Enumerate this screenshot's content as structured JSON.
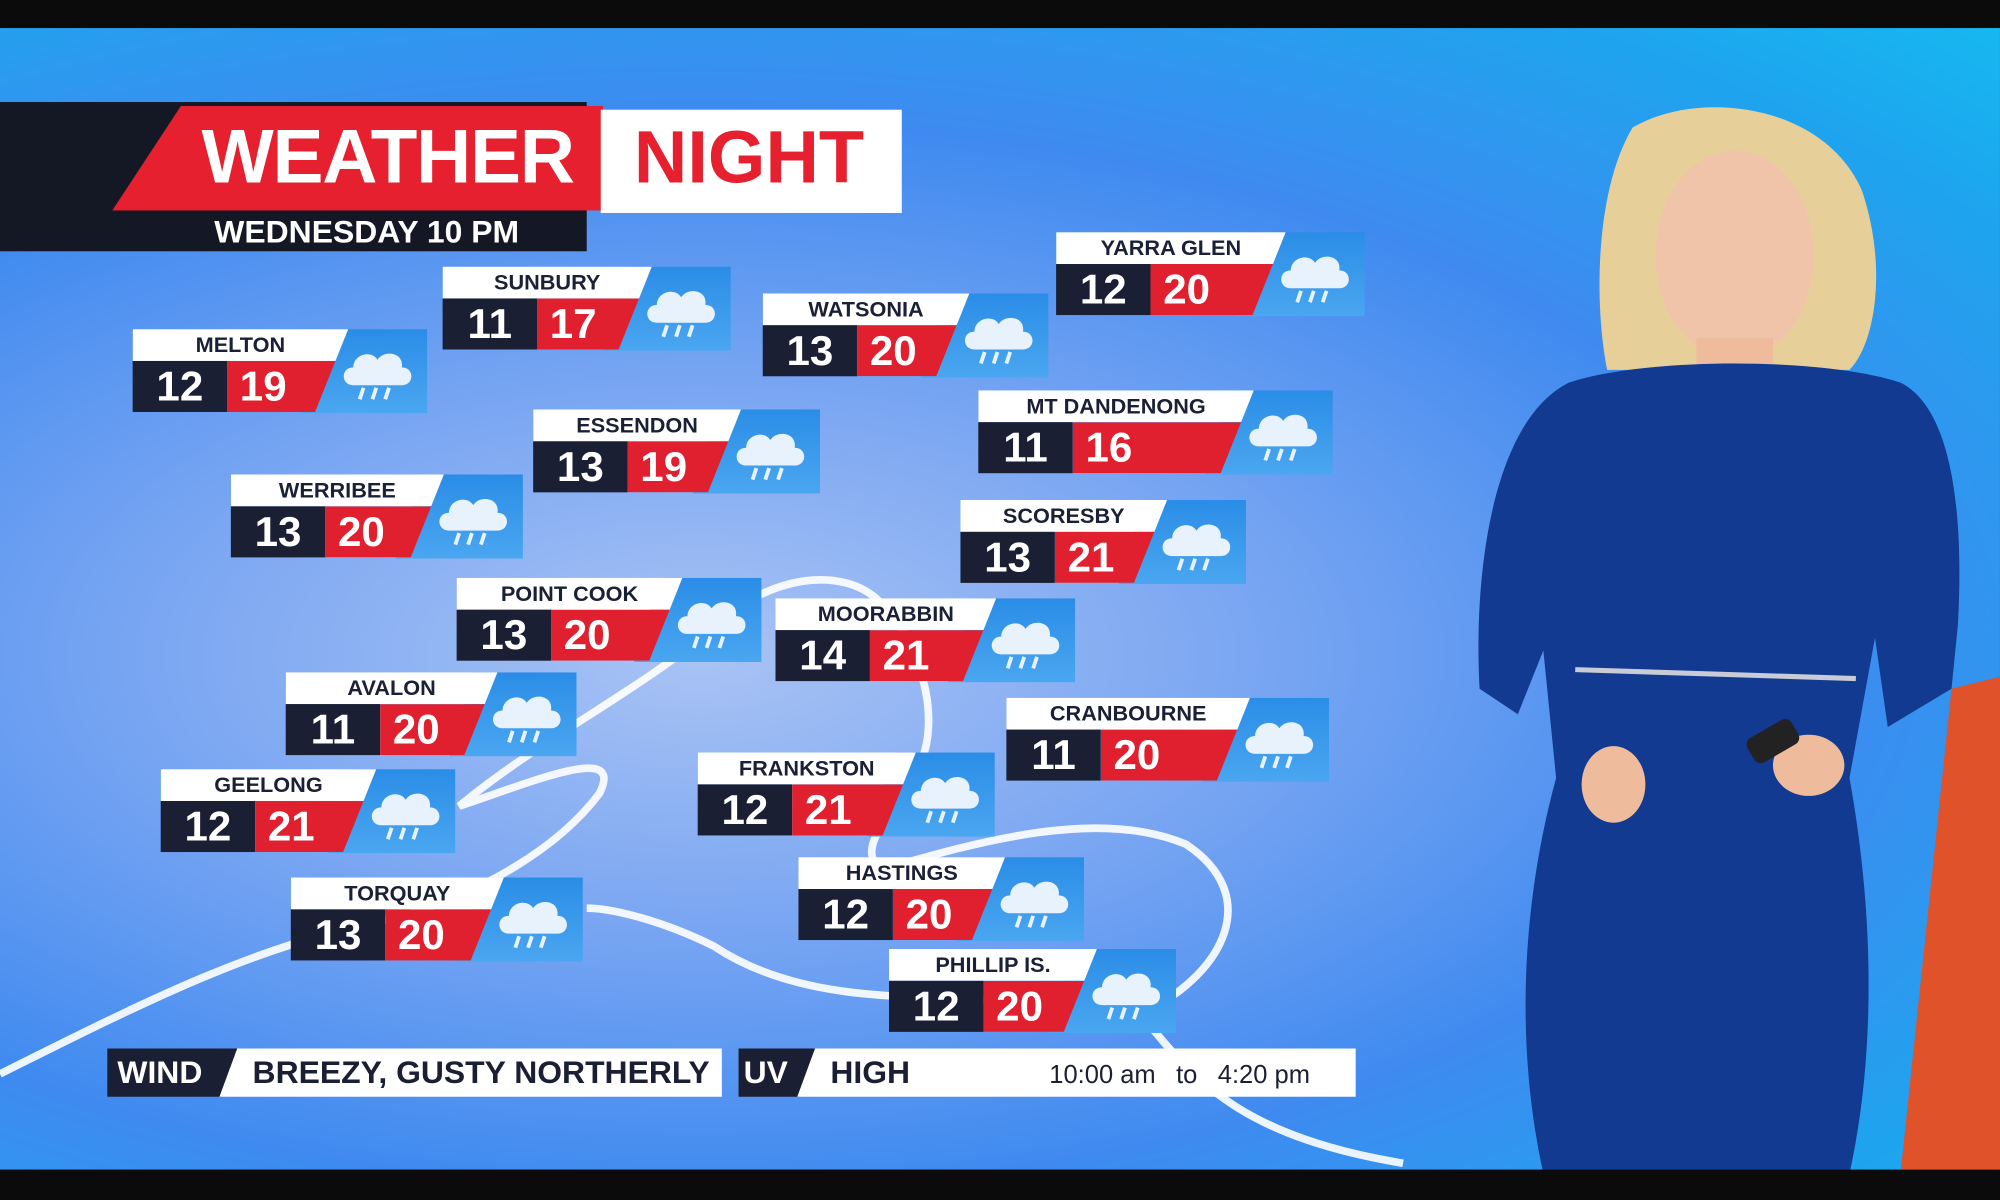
{
  "header": {
    "title_left": "WEATHER",
    "title_right": "NIGHT",
    "subtitle": "WEDNESDAY 10 PM"
  },
  "colors": {
    "accent_red": "#e6202e",
    "navy": "#1a1f33",
    "background_blue": "#3f8af0"
  },
  "locations": [
    {
      "name": "MELTON",
      "min": "12",
      "max": "19",
      "icon": "rain-cloud-icon"
    },
    {
      "name": "SUNBURY",
      "min": "11",
      "max": "17",
      "icon": "rain-cloud-icon"
    },
    {
      "name": "WATSONIA",
      "min": "13",
      "max": "20",
      "icon": "rain-cloud-icon"
    },
    {
      "name": "YARRA GLEN",
      "min": "12",
      "max": "20",
      "icon": "rain-cloud-icon"
    },
    {
      "name": "ESSENDON",
      "min": "13",
      "max": "19",
      "icon": "rain-cloud-icon"
    },
    {
      "name": "MT DANDENONG",
      "min": "11",
      "max": "16",
      "icon": "rain-cloud-icon"
    },
    {
      "name": "WERRIBEE",
      "min": "13",
      "max": "20",
      "icon": "rain-cloud-icon"
    },
    {
      "name": "SCORESBY",
      "min": "13",
      "max": "21",
      "icon": "rain-cloud-icon"
    },
    {
      "name": "POINT COOK",
      "min": "13",
      "max": "20",
      "icon": "rain-cloud-icon"
    },
    {
      "name": "MOORABBIN",
      "min": "14",
      "max": "21",
      "icon": "rain-cloud-icon"
    },
    {
      "name": "AVALON",
      "min": "11",
      "max": "20",
      "icon": "rain-cloud-icon"
    },
    {
      "name": "CRANBOURNE",
      "min": "11",
      "max": "20",
      "icon": "rain-cloud-icon"
    },
    {
      "name": "GEELONG",
      "min": "12",
      "max": "21",
      "icon": "rain-cloud-icon"
    },
    {
      "name": "FRANKSTON",
      "min": "12",
      "max": "21",
      "icon": "rain-cloud-icon"
    },
    {
      "name": "TORQUAY",
      "min": "13",
      "max": "20",
      "icon": "rain-cloud-icon"
    },
    {
      "name": "HASTINGS",
      "min": "12",
      "max": "20",
      "icon": "rain-cloud-icon"
    },
    {
      "name": "PHILLIP IS.",
      "min": "12",
      "max": "20",
      "icon": "rain-cloud-icon"
    }
  ],
  "wind": {
    "label": "WIND",
    "value": "BREEZY, GUSTY NORTHERLY"
  },
  "uv": {
    "label": "UV",
    "value": "HIGH",
    "from": "10:00 am",
    "to_word": "to",
    "to": "4:20 pm"
  }
}
